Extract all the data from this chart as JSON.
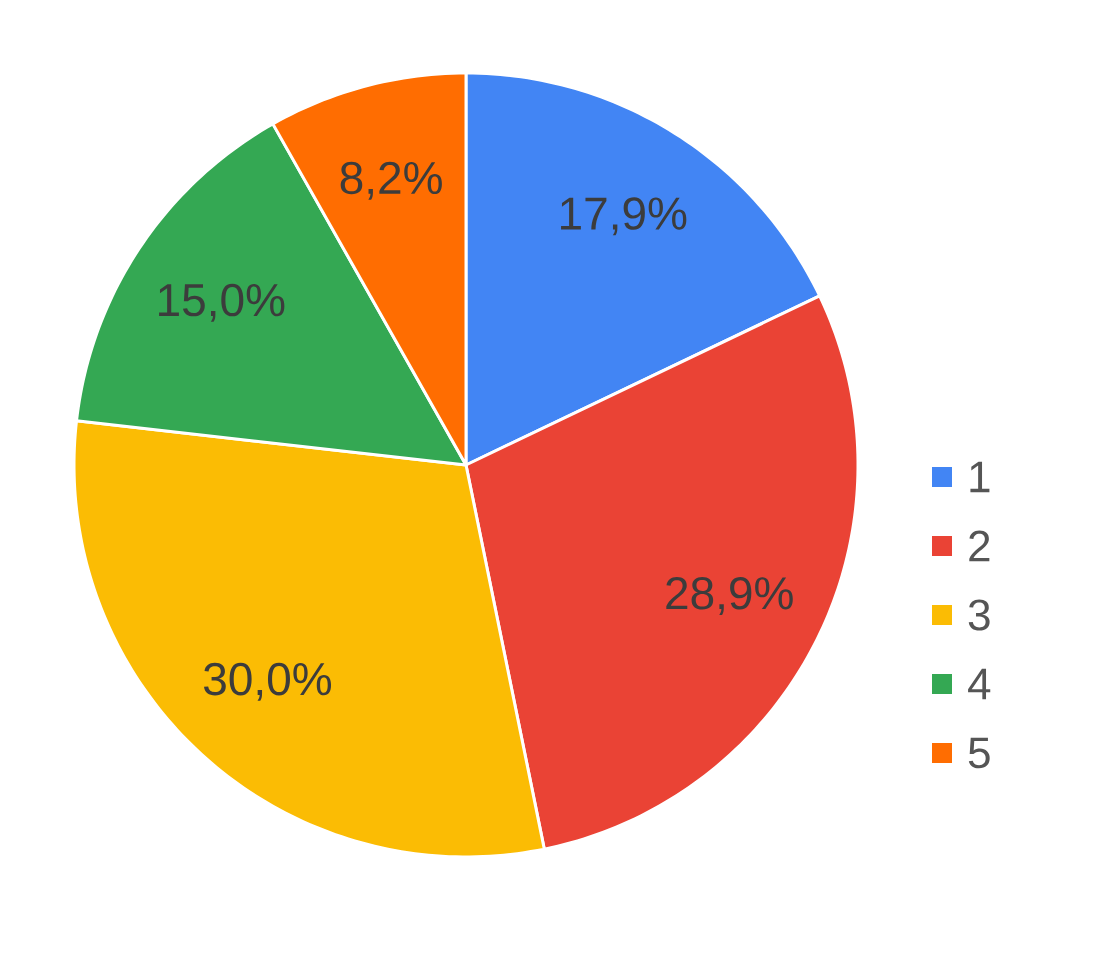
{
  "chart_data": {
    "type": "pie",
    "categories": [
      "1",
      "2",
      "3",
      "4",
      "5"
    ],
    "values": [
      17.9,
      28.9,
      30.0,
      15.0,
      8.2
    ],
    "colors": [
      "#4285f4",
      "#ea4335",
      "#fbbc04",
      "#34a853",
      "#ff6d01"
    ],
    "value_labels": [
      "17,9%",
      "28,9%",
      "30,0%",
      "15,0%",
      "8,2%"
    ],
    "legend": "right"
  }
}
